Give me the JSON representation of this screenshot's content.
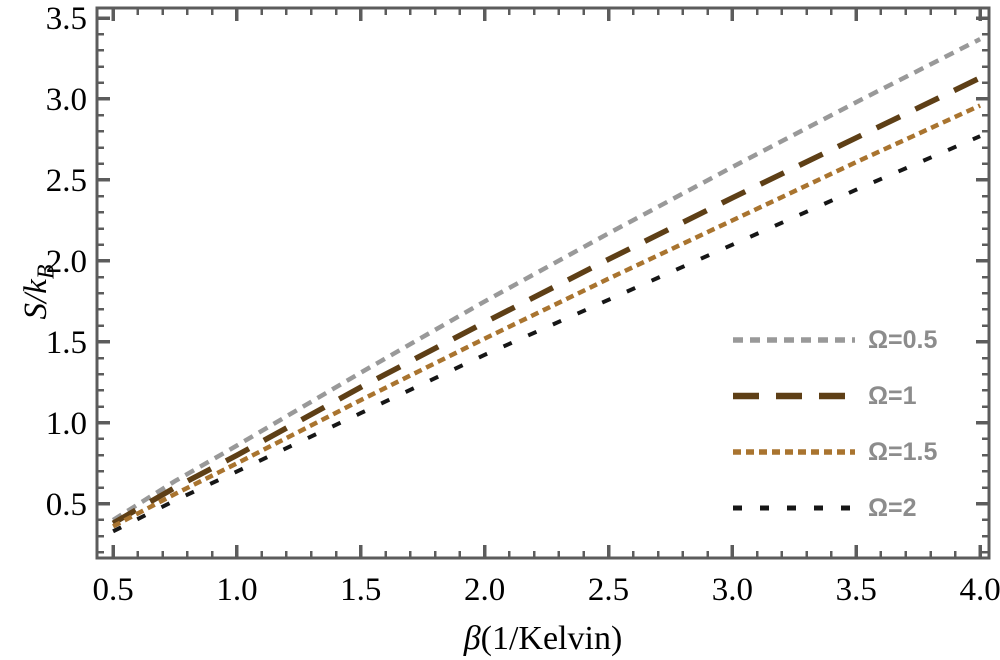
{
  "figure": {
    "background": "#ffffff",
    "frame_color": "#5c5c5c",
    "tick_label_color": "#000000",
    "legend_text_color": "#8c8c8c"
  },
  "chart_data": {
    "type": "line",
    "title": "",
    "xlabel": "β(1/Kelvin)",
    "xlabel_parts": {
      "italic": "β",
      "rest": "(1/Kelvin)"
    },
    "ylabel": "S/k_B",
    "ylabel_parts": {
      "main": "S/k",
      "sub": "B"
    },
    "xlim": [
      0.435,
      4.036
    ],
    "ylim": [
      0.165,
      3.562
    ],
    "xticks": [
      "0.5",
      "1.0",
      "1.5",
      "2.0",
      "2.5",
      "3.0",
      "3.5",
      "4.0"
    ],
    "yticks": [
      "0.5",
      "1.0",
      "1.5",
      "2.0",
      "2.5",
      "3.0",
      "3.5"
    ],
    "minor_tick_step": 0.1,
    "grid": false,
    "legend_position": "inside-lower-right",
    "series": [
      {
        "name": "Ω=0.5",
        "omega": 0.5,
        "color": "#999999",
        "dash": "10 7",
        "width": 4.5,
        "points": [
          [
            0.5,
            0.4
          ],
          [
            0.75,
            0.64
          ],
          [
            1.0,
            0.86
          ],
          [
            1.5,
            1.31
          ],
          [
            2.0,
            1.75
          ],
          [
            2.5,
            2.17
          ],
          [
            3.0,
            2.58
          ],
          [
            3.5,
            2.98
          ],
          [
            4.0,
            3.37
          ]
        ]
      },
      {
        "name": "Ω=1",
        "omega": 1,
        "color": "#5e3f16",
        "dash": "26 17",
        "width": 5.5,
        "points": [
          [
            0.5,
            0.38
          ],
          [
            0.75,
            0.6
          ],
          [
            1.0,
            0.8
          ],
          [
            1.5,
            1.22
          ],
          [
            2.0,
            1.62
          ],
          [
            2.5,
            2.01
          ],
          [
            3.0,
            2.39
          ],
          [
            3.5,
            2.76
          ],
          [
            4.0,
            3.13
          ]
        ]
      },
      {
        "name": "Ω=1.5",
        "omega": 1.5,
        "color": "#a9742f",
        "dash": "8 5",
        "width": 4.5,
        "points": [
          [
            0.5,
            0.36
          ],
          [
            0.75,
            0.56
          ],
          [
            1.0,
            0.75
          ],
          [
            1.5,
            1.14
          ],
          [
            2.0,
            1.52
          ],
          [
            2.5,
            1.89
          ],
          [
            3.0,
            2.25
          ],
          [
            3.5,
            2.61
          ],
          [
            4.0,
            2.96
          ]
        ]
      },
      {
        "name": "Ω=2",
        "omega": 2,
        "color": "#161616",
        "dash": "9 18",
        "width": 4,
        "points": [
          [
            0.5,
            0.33
          ],
          [
            0.75,
            0.52
          ],
          [
            1.0,
            0.7
          ],
          [
            1.5,
            1.06
          ],
          [
            2.0,
            1.42
          ],
          [
            2.5,
            1.76
          ],
          [
            3.0,
            2.1
          ],
          [
            3.5,
            2.44
          ],
          [
            4.0,
            2.77
          ]
        ]
      }
    ]
  }
}
